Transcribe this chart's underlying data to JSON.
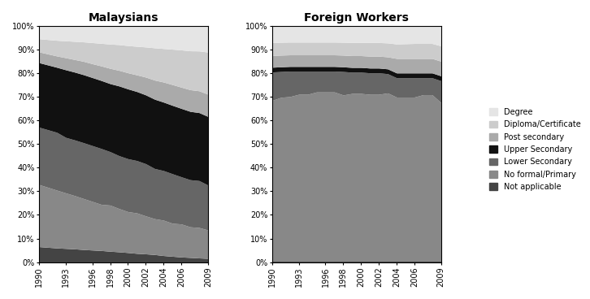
{
  "years": [
    1990,
    1991,
    1992,
    1993,
    1994,
    1995,
    1996,
    1997,
    1998,
    1999,
    2000,
    2001,
    2002,
    2003,
    2004,
    2005,
    2006,
    2007,
    2008,
    2009
  ],
  "x_ticks": [
    1990,
    1993,
    1996,
    1998,
    2000,
    2002,
    2004,
    2006,
    2009
  ],
  "categories": [
    "Not applicable",
    "No formal/Primary",
    "Lower Secondary",
    "Upper Secondary",
    "Post secondary",
    "Diploma/Certificate",
    "Degree"
  ],
  "colors": [
    "#444444",
    "#888888",
    "#666666",
    "#111111",
    "#aaaaaa",
    "#cccccc",
    "#e5e5e5"
  ],
  "malaysians": {
    "Not applicable": [
      0.065,
      0.062,
      0.059,
      0.057,
      0.055,
      0.052,
      0.05,
      0.048,
      0.045,
      0.043,
      0.04,
      0.037,
      0.035,
      0.032,
      0.028,
      0.025,
      0.022,
      0.02,
      0.018,
      0.016
    ],
    "No formal/Primary": [
      0.26,
      0.25,
      0.24,
      0.23,
      0.22,
      0.21,
      0.2,
      0.19,
      0.19,
      0.18,
      0.17,
      0.17,
      0.16,
      0.15,
      0.15,
      0.14,
      0.14,
      0.13,
      0.13,
      0.12
    ],
    "Lower Secondary": [
      0.24,
      0.24,
      0.24,
      0.23,
      0.23,
      0.23,
      0.23,
      0.23,
      0.22,
      0.22,
      0.22,
      0.22,
      0.22,
      0.21,
      0.21,
      0.21,
      0.2,
      0.2,
      0.2,
      0.19
    ],
    "Upper Secondary": [
      0.27,
      0.27,
      0.27,
      0.28,
      0.28,
      0.28,
      0.28,
      0.28,
      0.28,
      0.29,
      0.29,
      0.29,
      0.29,
      0.29,
      0.29,
      0.29,
      0.29,
      0.29,
      0.29,
      0.29
    ],
    "Post secondary": [
      0.045,
      0.046,
      0.047,
      0.05,
      0.052,
      0.055,
      0.057,
      0.06,
      0.063,
      0.065,
      0.067,
      0.07,
      0.075,
      0.08,
      0.085,
      0.088,
      0.09,
      0.092,
      0.093,
      0.094
    ],
    "Diploma/Certificate": [
      0.055,
      0.06,
      0.065,
      0.07,
      0.075,
      0.08,
      0.087,
      0.093,
      0.1,
      0.107,
      0.113,
      0.12,
      0.127,
      0.135,
      0.142,
      0.15,
      0.158,
      0.165,
      0.17,
      0.178
    ],
    "Degree": [
      0.055,
      0.058,
      0.061,
      0.063,
      0.065,
      0.067,
      0.07,
      0.073,
      0.076,
      0.079,
      0.083,
      0.087,
      0.09,
      0.093,
      0.097,
      0.1,
      0.103,
      0.107,
      0.108,
      0.112
    ]
  },
  "foreigners": {
    "Not applicable": [
      0.004,
      0.004,
      0.004,
      0.004,
      0.004,
      0.004,
      0.004,
      0.004,
      0.004,
      0.004,
      0.004,
      0.004,
      0.004,
      0.004,
      0.004,
      0.004,
      0.004,
      0.004,
      0.004,
      0.004
    ],
    "No formal/Primary": [
      0.68,
      0.7,
      0.71,
      0.72,
      0.72,
      0.73,
      0.73,
      0.73,
      0.71,
      0.71,
      0.71,
      0.7,
      0.7,
      0.7,
      0.68,
      0.68,
      0.68,
      0.69,
      0.69,
      0.65
    ],
    "Lower Secondary": [
      0.12,
      0.11,
      0.11,
      0.1,
      0.1,
      0.09,
      0.09,
      0.09,
      0.1,
      0.09,
      0.09,
      0.09,
      0.09,
      0.08,
      0.08,
      0.08,
      0.08,
      0.07,
      0.07,
      0.09
    ],
    "Upper Secondary": [
      0.02,
      0.02,
      0.02,
      0.02,
      0.02,
      0.02,
      0.02,
      0.02,
      0.02,
      0.02,
      0.02,
      0.02,
      0.02,
      0.02,
      0.02,
      0.02,
      0.02,
      0.02,
      0.02,
      0.02
    ],
    "Post secondary": [
      0.05,
      0.05,
      0.05,
      0.05,
      0.05,
      0.05,
      0.05,
      0.05,
      0.05,
      0.05,
      0.05,
      0.05,
      0.05,
      0.05,
      0.06,
      0.06,
      0.06,
      0.06,
      0.06,
      0.06
    ],
    "Diploma/Certificate": [
      0.055,
      0.055,
      0.055,
      0.055,
      0.055,
      0.055,
      0.055,
      0.055,
      0.055,
      0.056,
      0.056,
      0.057,
      0.057,
      0.058,
      0.06,
      0.061,
      0.062,
      0.062,
      0.062,
      0.063
    ],
    "Degree": [
      0.071,
      0.071,
      0.071,
      0.071,
      0.071,
      0.071,
      0.071,
      0.071,
      0.071,
      0.071,
      0.071,
      0.071,
      0.071,
      0.072,
      0.076,
      0.075,
      0.074,
      0.074,
      0.074,
      0.083
    ]
  },
  "title_malaysians": "Malaysians",
  "title_foreigners": "Foreign Workers",
  "background_color": "#ffffff"
}
